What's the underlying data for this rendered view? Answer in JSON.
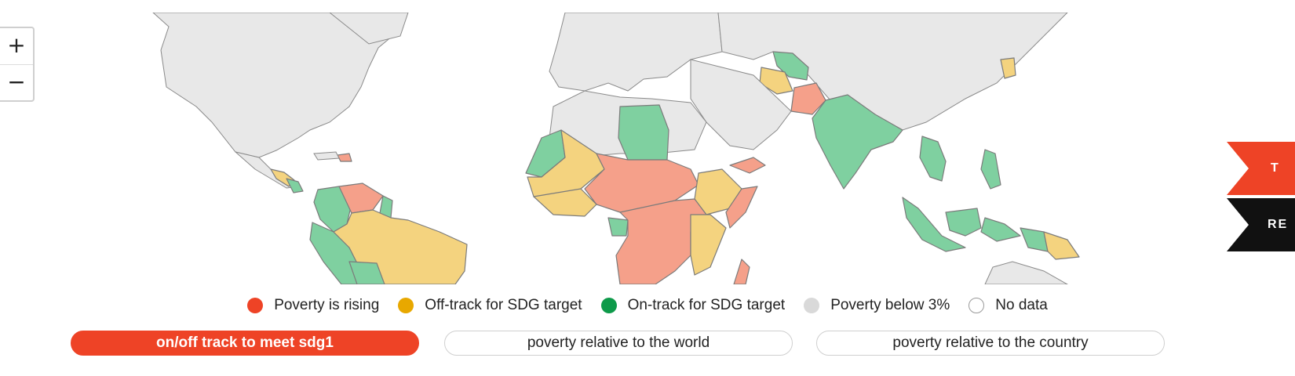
{
  "zoom": {
    "in_label": "+",
    "out_label": "−"
  },
  "colors": {
    "rising": "#f5a08a",
    "off_track": "#f4d37f",
    "on_track": "#7fd0a0",
    "below3": "#e8e8e8",
    "nodata": "#ffffff",
    "accent": "#ee4326"
  },
  "legend": {
    "items": [
      {
        "label": "Poverty is rising",
        "color": "#ee4326"
      },
      {
        "label": "Off-track for SDG target",
        "color": "#e8a800"
      },
      {
        "label": "On-track for SDG target",
        "color": "#0e9a4a"
      },
      {
        "label": "Poverty below 3%",
        "color": "#d9d9d9"
      },
      {
        "label": "No data",
        "color": "#ffffff"
      }
    ]
  },
  "buttons": {
    "b1": "on/off track to meet sdg1",
    "b2": "poverty relative to the world",
    "b3": "poverty relative to the country"
  },
  "ribbons": {
    "red_text": "T",
    "black_text": "RE"
  }
}
